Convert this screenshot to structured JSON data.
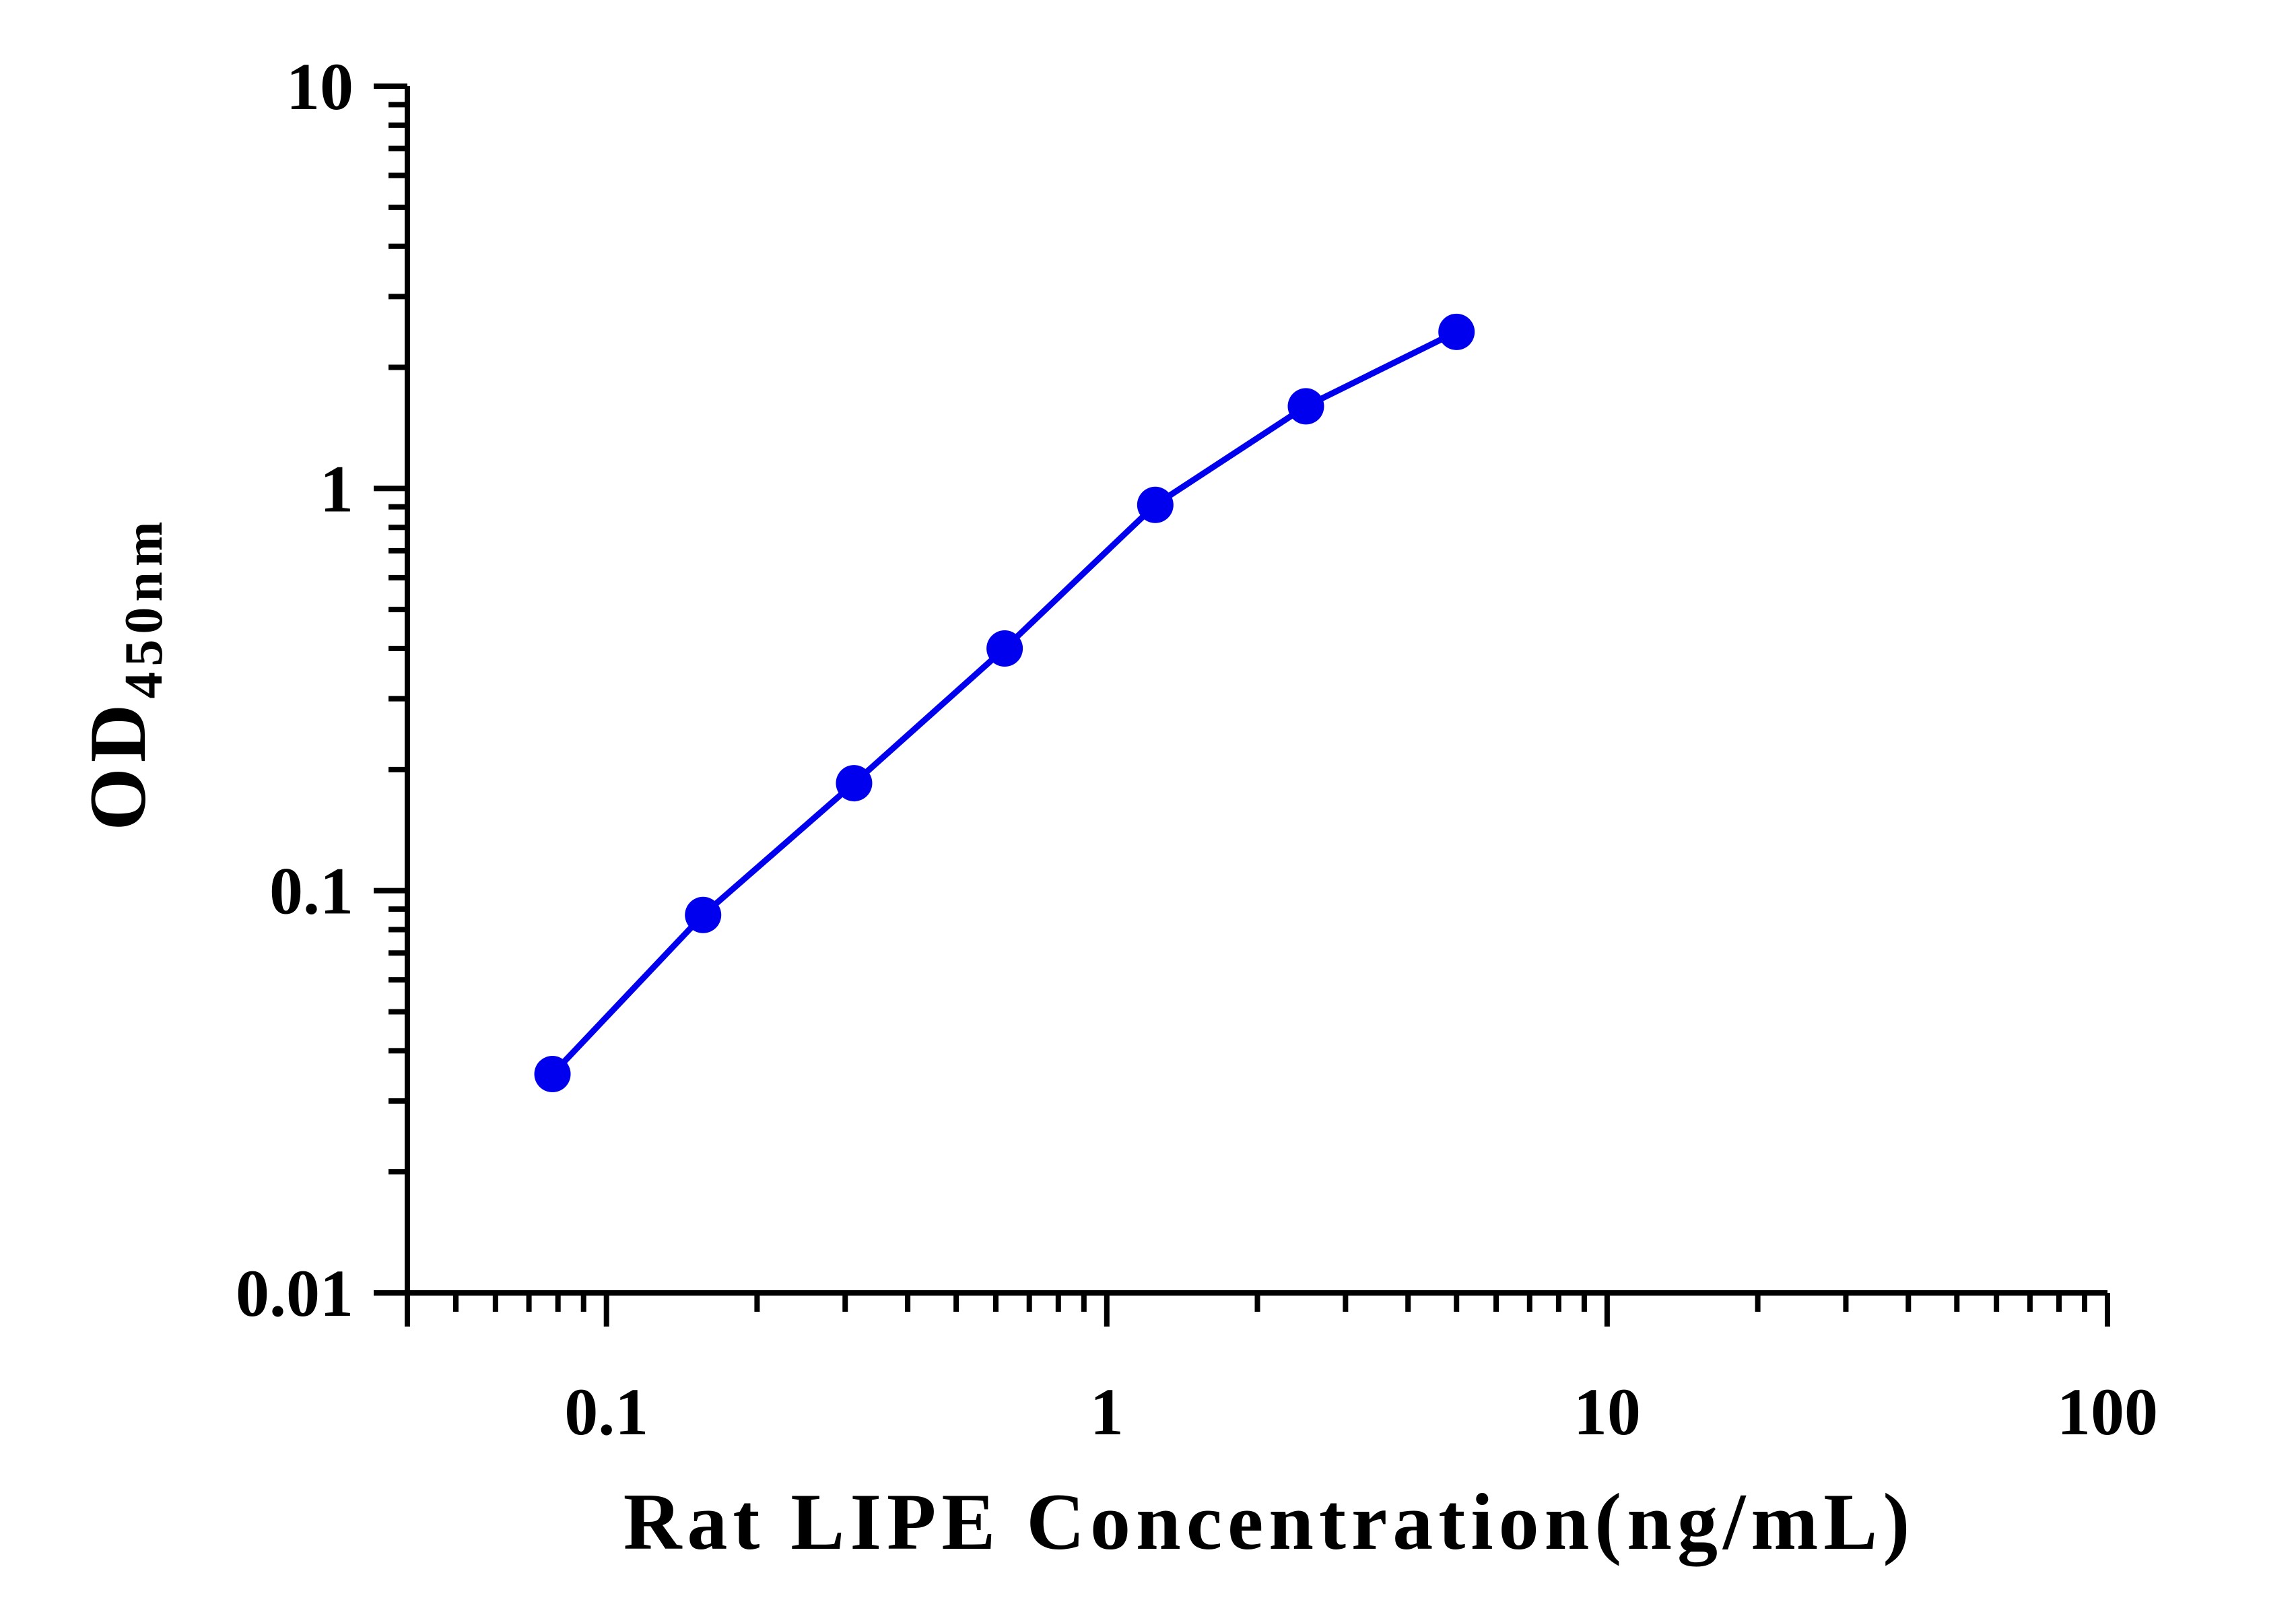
{
  "chart_data": {
    "type": "line",
    "title": "",
    "xlabel": "Rat LIPE Concentration(ng/mL)",
    "ylabel": "OD",
    "ylabel_subscript": "450nm",
    "xscale": "log",
    "yscale": "log",
    "xlim": [
      0.04,
      100
    ],
    "ylim": [
      0.01,
      10
    ],
    "xticks": [
      {
        "value": 0.1,
        "label": "0.1"
      },
      {
        "value": 1,
        "label": "1"
      },
      {
        "value": 10,
        "label": "10"
      },
      {
        "value": 100,
        "label": "100"
      }
    ],
    "yticks": [
      {
        "value": 0.01,
        "label": "0.01"
      },
      {
        "value": 0.1,
        "label": "0.1"
      },
      {
        "value": 1,
        "label": "1"
      },
      {
        "value": 10,
        "label": "10"
      }
    ],
    "grid": false,
    "legend": "none",
    "series": [
      {
        "color": "#0000ee",
        "points": [
          {
            "x": 0.078,
            "y": 0.035
          },
          {
            "x": 0.156,
            "y": 0.087
          },
          {
            "x": 0.3125,
            "y": 0.185
          },
          {
            "x": 0.625,
            "y": 0.4
          },
          {
            "x": 1.25,
            "y": 0.91
          },
          {
            "x": 2.5,
            "y": 1.6
          },
          {
            "x": 5.0,
            "y": 2.45
          }
        ]
      }
    ]
  }
}
